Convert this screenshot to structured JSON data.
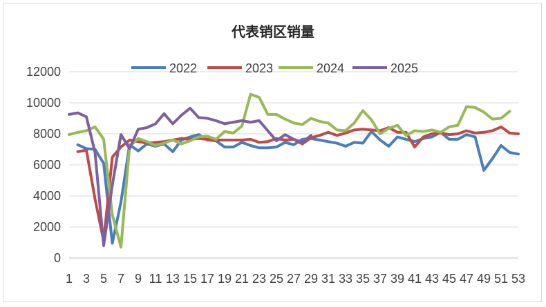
{
  "chart_data": {
    "type": "line",
    "title": "代表销区销量",
    "xlabel": "",
    "ylabel": "",
    "ylim": [
      0,
      12000
    ],
    "yticks": [
      0,
      2000,
      4000,
      6000,
      8000,
      10000,
      12000
    ],
    "xlim": [
      1,
      53
    ],
    "xticks": [
      1,
      3,
      5,
      7,
      9,
      11,
      13,
      15,
      17,
      19,
      21,
      23,
      25,
      27,
      29,
      31,
      33,
      35,
      37,
      39,
      41,
      43,
      45,
      47,
      49,
      51,
      53
    ],
    "grid": "horizontal",
    "legend_position": "top",
    "series": [
      {
        "name": "2022",
        "color": "#4a7ebb",
        "x": [
          2,
          3,
          4,
          5,
          6,
          7,
          8,
          9,
          10,
          11,
          12,
          13,
          14,
          15,
          16,
          17,
          18,
          19,
          20,
          21,
          22,
          23,
          24,
          25,
          26,
          27,
          28,
          29,
          30,
          31,
          32,
          33,
          34,
          35,
          36,
          37,
          38,
          39,
          40,
          41,
          42,
          43,
          44,
          45,
          46,
          47,
          48,
          49,
          50,
          51,
          52,
          53
        ],
        "values": [
          7300,
          7050,
          7000,
          6100,
          950,
          3600,
          7300,
          6900,
          7350,
          7200,
          7350,
          6850,
          7600,
          7800,
          7950,
          7600,
          7550,
          7150,
          7150,
          7450,
          7250,
          7100,
          7100,
          7150,
          7450,
          7300,
          7650,
          7700,
          7600,
          7500,
          7400,
          7200,
          7450,
          7400,
          8150,
          7600,
          7200,
          7800,
          7650,
          7500,
          7700,
          7800,
          8100,
          7650,
          7650,
          7950,
          7800,
          5650,
          6400,
          7250,
          6800,
          6700
        ]
      },
      {
        "name": "2023",
        "color": "#be4b48",
        "x": [
          2,
          3,
          4,
          5,
          6,
          7,
          8,
          9,
          10,
          11,
          12,
          13,
          14,
          15,
          16,
          17,
          18,
          19,
          20,
          21,
          22,
          23,
          24,
          25,
          26,
          27,
          28,
          29,
          30,
          31,
          32,
          33,
          34,
          35,
          36,
          37,
          38,
          39,
          40,
          41,
          42,
          43,
          44,
          45,
          46,
          47,
          48,
          49,
          50,
          51,
          52,
          53
        ],
        "values": [
          6850,
          6950,
          3800,
          1100,
          6500,
          7150,
          7600,
          7500,
          7400,
          7450,
          7500,
          7600,
          7700,
          7650,
          7700,
          7650,
          7600,
          7600,
          7600,
          7600,
          7650,
          7450,
          7500,
          7700,
          7600,
          7650,
          7350,
          7750,
          7900,
          8100,
          7900,
          8050,
          8250,
          8300,
          8250,
          8200,
          8400,
          8100,
          8100,
          7150,
          7800,
          8000,
          8050,
          7950,
          8000,
          8200,
          8050,
          8100,
          8200,
          8450,
          8050,
          8000
        ]
      },
      {
        "name": "2024",
        "color": "#98b954",
        "x": [
          1,
          2,
          3,
          4,
          5,
          6,
          7,
          8,
          9,
          10,
          11,
          12,
          13,
          14,
          15,
          16,
          17,
          18,
          19,
          20,
          21,
          22,
          23,
          24,
          25,
          26,
          27,
          28,
          29,
          30,
          31,
          32,
          33,
          34,
          35,
          36,
          37,
          38,
          39,
          40,
          41,
          42,
          43,
          44,
          45,
          46,
          47,
          48,
          49,
          50,
          51,
          52
        ],
        "values": [
          7950,
          8100,
          8200,
          8450,
          7650,
          2800,
          700,
          7200,
          7700,
          7500,
          7250,
          7400,
          7600,
          7350,
          7550,
          7800,
          7850,
          7650,
          8150,
          8050,
          8500,
          10550,
          10350,
          9250,
          9250,
          8950,
          8700,
          8600,
          9000,
          8800,
          8700,
          8250,
          8200,
          8700,
          9500,
          8900,
          8000,
          8350,
          8550,
          7900,
          8200,
          8150,
          8250,
          8100,
          8450,
          8550,
          9750,
          9700,
          9400,
          8950,
          9000,
          9450
        ]
      },
      {
        "name": "2025",
        "color": "#7d60a0",
        "x": [
          1,
          2,
          3,
          4,
          5,
          6,
          7,
          8,
          9,
          10,
          11,
          12,
          13,
          14,
          15,
          16,
          17,
          18,
          19,
          20,
          21,
          22,
          23,
          24,
          25,
          26,
          27,
          28,
          29
        ],
        "values": [
          9250,
          9350,
          9100,
          6800,
          800,
          4700,
          7950,
          7050,
          8300,
          8400,
          8650,
          9300,
          8650,
          9200,
          9650,
          9050,
          9000,
          8850,
          8650,
          8750,
          8850,
          8750,
          8850,
          8200,
          7550,
          7950,
          7650,
          7450,
          7900
        ]
      }
    ]
  }
}
